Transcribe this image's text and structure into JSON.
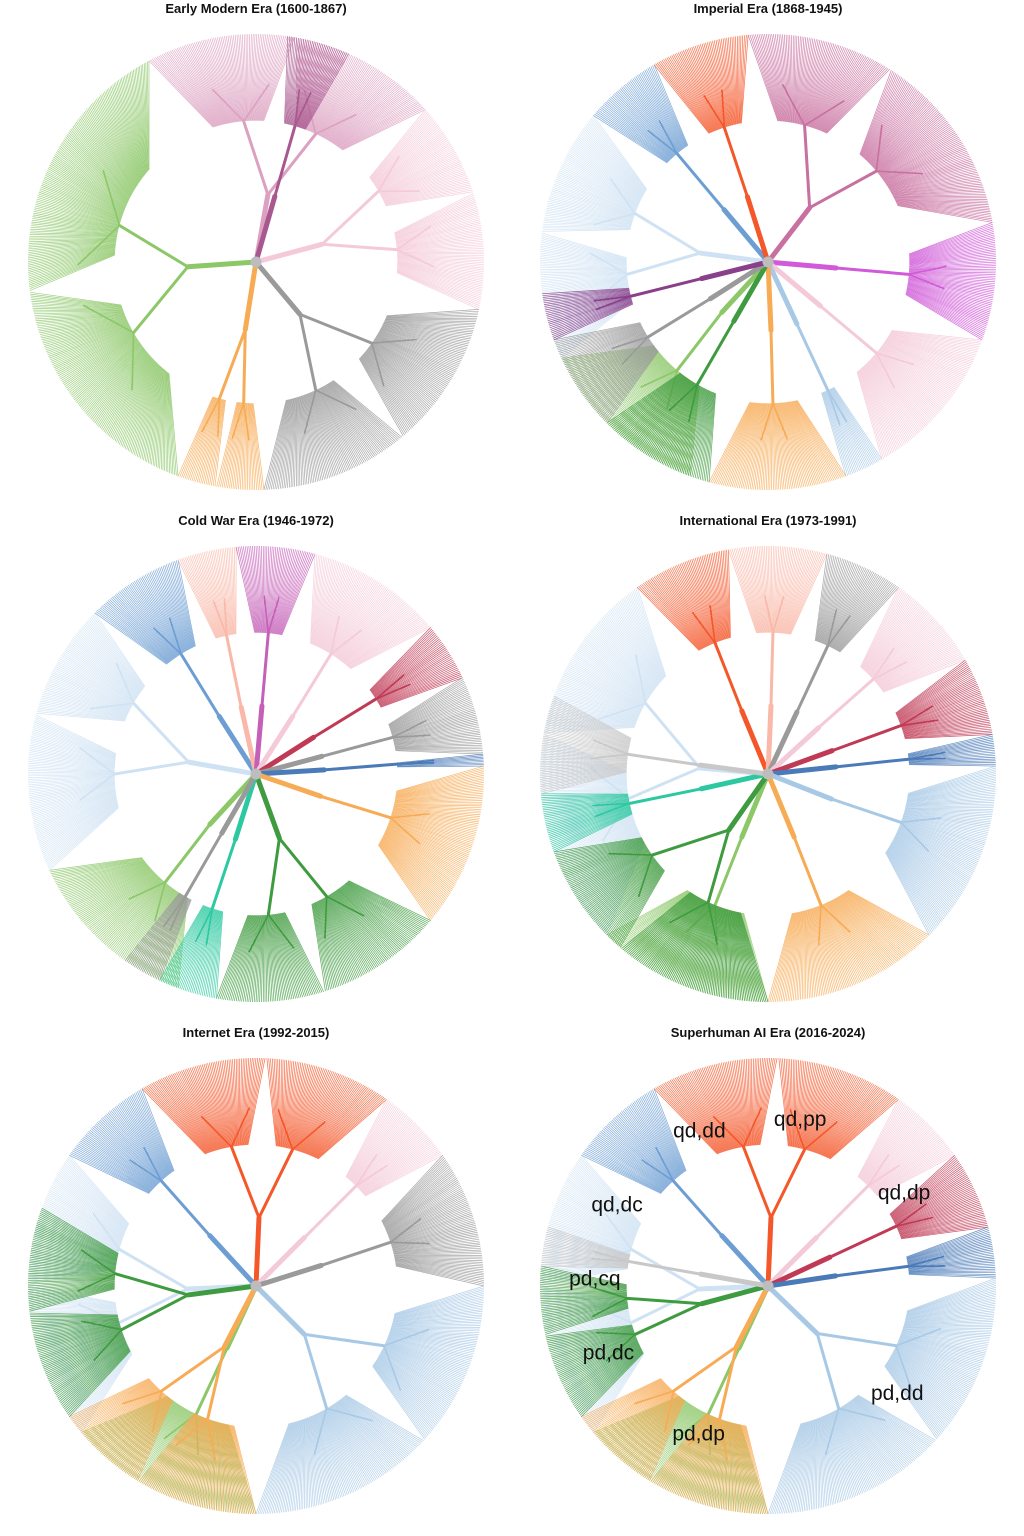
{
  "panels": [
    {
      "id": "early-modern",
      "title": "Early Modern Era (1600-1867)",
      "clades": [
        {
          "from": -160,
          "to": -28,
          "color": "#8cc768",
          "mids": [
            -120,
            -75
          ]
        },
        {
          "from": -28,
          "to": 48,
          "color": "#dca0c0",
          "mids": [
            -5,
            25
          ]
        },
        {
          "from": 8,
          "to": 24,
          "color": "#a9588f",
          "mids": [
            16
          ]
        },
        {
          "from": 48,
          "to": 102,
          "color": "#f4c9d8",
          "mids": [
            60,
            85
          ]
        },
        {
          "from": 102,
          "to": 178,
          "color": "#9a9a9a",
          "mids": [
            125,
            155
          ]
        },
        {
          "from": 178,
          "to": 200,
          "color": "#f7ab55",
          "mids": [
            185,
            195
          ]
        }
      ],
      "labels": []
    },
    {
      "id": "imperial",
      "title": "Imperial Era (1868-1945)",
      "clades": [
        {
          "from": -160,
          "to": -115,
          "color": "#8cc768",
          "mids": [
            -140
          ]
        },
        {
          "from": -115,
          "to": -50,
          "color": "#cfe2f3",
          "mids": [
            -95,
            -70
          ]
        },
        {
          "from": -50,
          "to": -30,
          "color": "#6d9ed3",
          "mids": [
            -40
          ]
        },
        {
          "from": -30,
          "to": -5,
          "color": "#f4572a",
          "mids": [
            -18
          ]
        },
        {
          "from": -5,
          "to": 80,
          "color": "#c8709f",
          "mids": [
            15,
            50
          ]
        },
        {
          "from": 80,
          "to": 110,
          "color": "#d05ad8",
          "mids": [
            95
          ]
        },
        {
          "from": 110,
          "to": 150,
          "color": "#f4c9d8",
          "mids": [
            130
          ]
        },
        {
          "from": 150,
          "to": 160,
          "color": "#a8c9e6",
          "mids": [
            155
          ]
        },
        {
          "from": 160,
          "to": 195,
          "color": "#f7ab55",
          "mids": [
            178
          ]
        },
        {
          "from": 195,
          "to": 225,
          "color": "#3f9b3f",
          "mids": [
            210
          ]
        },
        {
          "from": 225,
          "to": 250,
          "color": "#9a9a9a",
          "mids": [
            238
          ]
        },
        {
          "from": 250,
          "to": 262,
          "color": "#8a3f8a",
          "mids": [
            256
          ]
        }
      ],
      "labels": []
    },
    {
      "id": "cold-war",
      "title": "Cold War Era (1946-1972)",
      "clades": [
        {
          "from": -160,
          "to": -115,
          "color": "#8cc768",
          "mids": [
            -140
          ]
        },
        {
          "from": -115,
          "to": -45,
          "color": "#cfe2f3",
          "mids": [
            -90,
            -60
          ]
        },
        {
          "from": -45,
          "to": -20,
          "color": "#6d9ed3",
          "mids": [
            -32
          ]
        },
        {
          "from": -20,
          "to": -5,
          "color": "#f9b8a8",
          "mids": [
            -12
          ]
        },
        {
          "from": -5,
          "to": 15,
          "color": "#c560b8",
          "mids": [
            5
          ]
        },
        {
          "from": 15,
          "to": 50,
          "color": "#f4c9d8",
          "mids": [
            32
          ]
        },
        {
          "from": 50,
          "to": 65,
          "color": "#c03a55",
          "mids": [
            58
          ]
        },
        {
          "from": 65,
          "to": 85,
          "color": "#9a9a9a",
          "mids": [
            75
          ]
        },
        {
          "from": 85,
          "to": 88,
          "color": "#4a7ab8",
          "mids": [
            86
          ]
        },
        {
          "from": 88,
          "to": 130,
          "color": "#f7ab55",
          "mids": [
            108
          ]
        },
        {
          "from": 130,
          "to": 190,
          "color": "#3f9b3f",
          "mids": [
            150,
            175
          ]
        },
        {
          "from": 190,
          "to": 205,
          "color": "#2cc9a0",
          "mids": [
            198
          ]
        },
        {
          "from": 205,
          "to": 215,
          "color": "#9a9a9a",
          "mids": [
            210
          ]
        }
      ],
      "labels": []
    },
    {
      "id": "international",
      "title": "International Era (1973-1991)",
      "clades": [
        {
          "from": -180,
          "to": -135,
          "color": "#8cc768",
          "mids": [
            -158
          ]
        },
        {
          "from": -135,
          "to": -35,
          "color": "#cfe2f3",
          "mids": [
            -100,
            -60
          ]
        },
        {
          "from": -35,
          "to": -10,
          "color": "#f4572a",
          "mids": [
            -22
          ]
        },
        {
          "from": -10,
          "to": 15,
          "color": "#f9b8a8",
          "mids": [
            2
          ]
        },
        {
          "from": 15,
          "to": 35,
          "color": "#9a9a9a",
          "mids": [
            25
          ]
        },
        {
          "from": 35,
          "to": 60,
          "color": "#f4c9d8",
          "mids": [
            48
          ]
        },
        {
          "from": 60,
          "to": 80,
          "color": "#c03a55",
          "mids": [
            70
          ]
        },
        {
          "from": 80,
          "to": 88,
          "color": "#4a7ab8",
          "mids": [
            84
          ]
        },
        {
          "from": 88,
          "to": 135,
          "color": "#a8c9e6",
          "mids": [
            110
          ]
        },
        {
          "from": 135,
          "to": 180,
          "color": "#f7ab55",
          "mids": [
            158
          ]
        },
        {
          "from": 180,
          "to": 250,
          "color": "#3f9b3f",
          "mids": [
            205,
            235
          ]
        },
        {
          "from": 250,
          "to": 265,
          "color": "#2cc9a0",
          "mids": [
            258
          ]
        },
        {
          "from": 265,
          "to": 290,
          "color": "#c8c8c8",
          "mids": [
            278
          ]
        }
      ],
      "labels": []
    },
    {
      "id": "internet",
      "title": "Internet Era (1992-2015)",
      "clades": [
        {
          "from": -180,
          "to": -130,
          "color": "#8cc768",
          "mids": [
            -155
          ]
        },
        {
          "from": -130,
          "to": -55,
          "color": "#cfe2f3",
          "mids": [
            -105,
            -75
          ]
        },
        {
          "from": -55,
          "to": -30,
          "color": "#6d9ed3",
          "mids": [
            -42
          ]
        },
        {
          "from": -30,
          "to": 35,
          "color": "#f4572a",
          "mids": [
            -10,
            15
          ]
        },
        {
          "from": 35,
          "to": 55,
          "color": "#f4c9d8",
          "mids": [
            45
          ]
        },
        {
          "from": 55,
          "to": 90,
          "color": "#9a9a9a",
          "mids": [
            72
          ]
        },
        {
          "from": 90,
          "to": 180,
          "color": "#a8c9e6",
          "mids": [
            115,
            150
          ]
        },
        {
          "from": 180,
          "to": 235,
          "color": "#f7ab55",
          "mids": [
            200,
            222
          ]
        },
        {
          "from": 235,
          "to": 290,
          "color": "#3f9b3f",
          "mids": [
            252,
            275
          ]
        }
      ],
      "labels": []
    },
    {
      "id": "superhuman-ai",
      "title": "Superhuman AI Era (2016-2024)",
      "clades": [
        {
          "from": -180,
          "to": -130,
          "color": "#8cc768",
          "mids": [
            -155
          ]
        },
        {
          "from": -130,
          "to": -55,
          "color": "#cfe2f3",
          "mids": [
            -105,
            -75
          ]
        },
        {
          "from": -55,
          "to": -30,
          "color": "#6d9ed3",
          "mids": [
            -42
          ]
        },
        {
          "from": -30,
          "to": 35,
          "color": "#f4572a",
          "mids": [
            -10,
            15
          ]
        },
        {
          "from": 35,
          "to": 55,
          "color": "#f4c9d8",
          "mids": [
            45
          ]
        },
        {
          "from": 55,
          "to": 75,
          "color": "#c03a55",
          "mids": [
            65
          ]
        },
        {
          "from": 75,
          "to": 88,
          "color": "#4a7ab8",
          "mids": [
            82
          ]
        },
        {
          "from": 88,
          "to": 180,
          "color": "#a8c9e6",
          "mids": [
            115,
            150
          ]
        },
        {
          "from": 180,
          "to": 235,
          "color": "#f7ab55",
          "mids": [
            200,
            222
          ]
        },
        {
          "from": 235,
          "to": 275,
          "color": "#3f9b3f",
          "mids": [
            250,
            265
          ]
        },
        {
          "from": 275,
          "to": 285,
          "color": "#c8c8c8",
          "mids": [
            280
          ]
        }
      ],
      "labels": [
        {
          "text": "qd,dd",
          "angle": -24,
          "radius": 0.74
        },
        {
          "text": "qd,pp",
          "angle": 11,
          "radius": 0.74
        },
        {
          "text": "qd,dp",
          "angle": 56,
          "radius": 0.72
        },
        {
          "text": "qd,dc",
          "angle": -62,
          "radius": 0.75
        },
        {
          "text": "pd,cq",
          "angle": -88,
          "radius": 0.76
        },
        {
          "text": "pd,dc",
          "angle": -113,
          "radius": 0.76
        },
        {
          "text": "pd,dp",
          "angle": -155,
          "radius": 0.72
        },
        {
          "text": "pd,dd",
          "angle": 130,
          "radius": 0.74
        }
      ]
    }
  ]
}
